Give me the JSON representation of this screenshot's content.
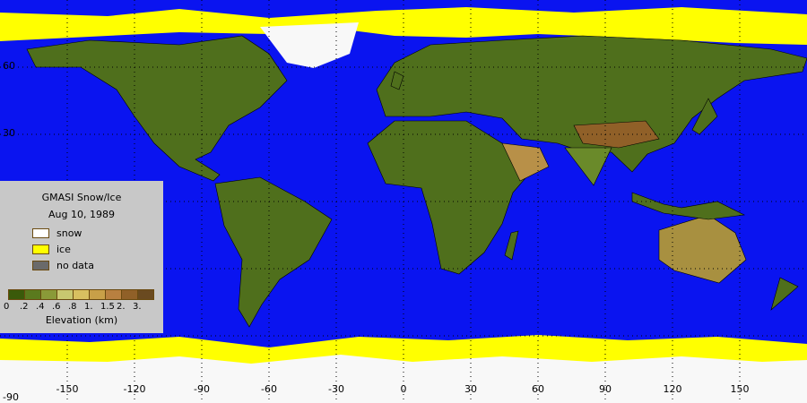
{
  "legend": {
    "title": "GMASI Snow/Ice",
    "date": "Aug 10, 1989",
    "items": [
      {
        "label": "snow",
        "color": "#ffffff"
      },
      {
        "label": "ice",
        "color": "#ffff00"
      },
      {
        "label": "no data",
        "color": "#6a6a6a"
      }
    ],
    "elevation_bins": [
      "0",
      ".2",
      ".4",
      ".6",
      ".8",
      "1.",
      "1.5",
      "2.",
      "3."
    ],
    "elevation_colors": [
      "#3a5a0a",
      "#5a7a1e",
      "#8a9a38",
      "#c8c870",
      "#d8c060",
      "#c8a048",
      "#b88040",
      "#906028",
      "#6a4a20"
    ],
    "elevation_label": "Elevation (km)"
  },
  "axes": {
    "longitude_ticks": [
      "-150",
      "-120",
      "-90",
      "-60",
      "-30",
      "0",
      "30",
      "60",
      "90",
      "120",
      "150"
    ],
    "latitude_ticks": [
      "60",
      "30",
      "-90"
    ]
  },
  "colors": {
    "ocean": "#0a14f0",
    "ice": "#ffff00",
    "snow": "#f8f8f8",
    "land": "#4a6a1a"
  }
}
